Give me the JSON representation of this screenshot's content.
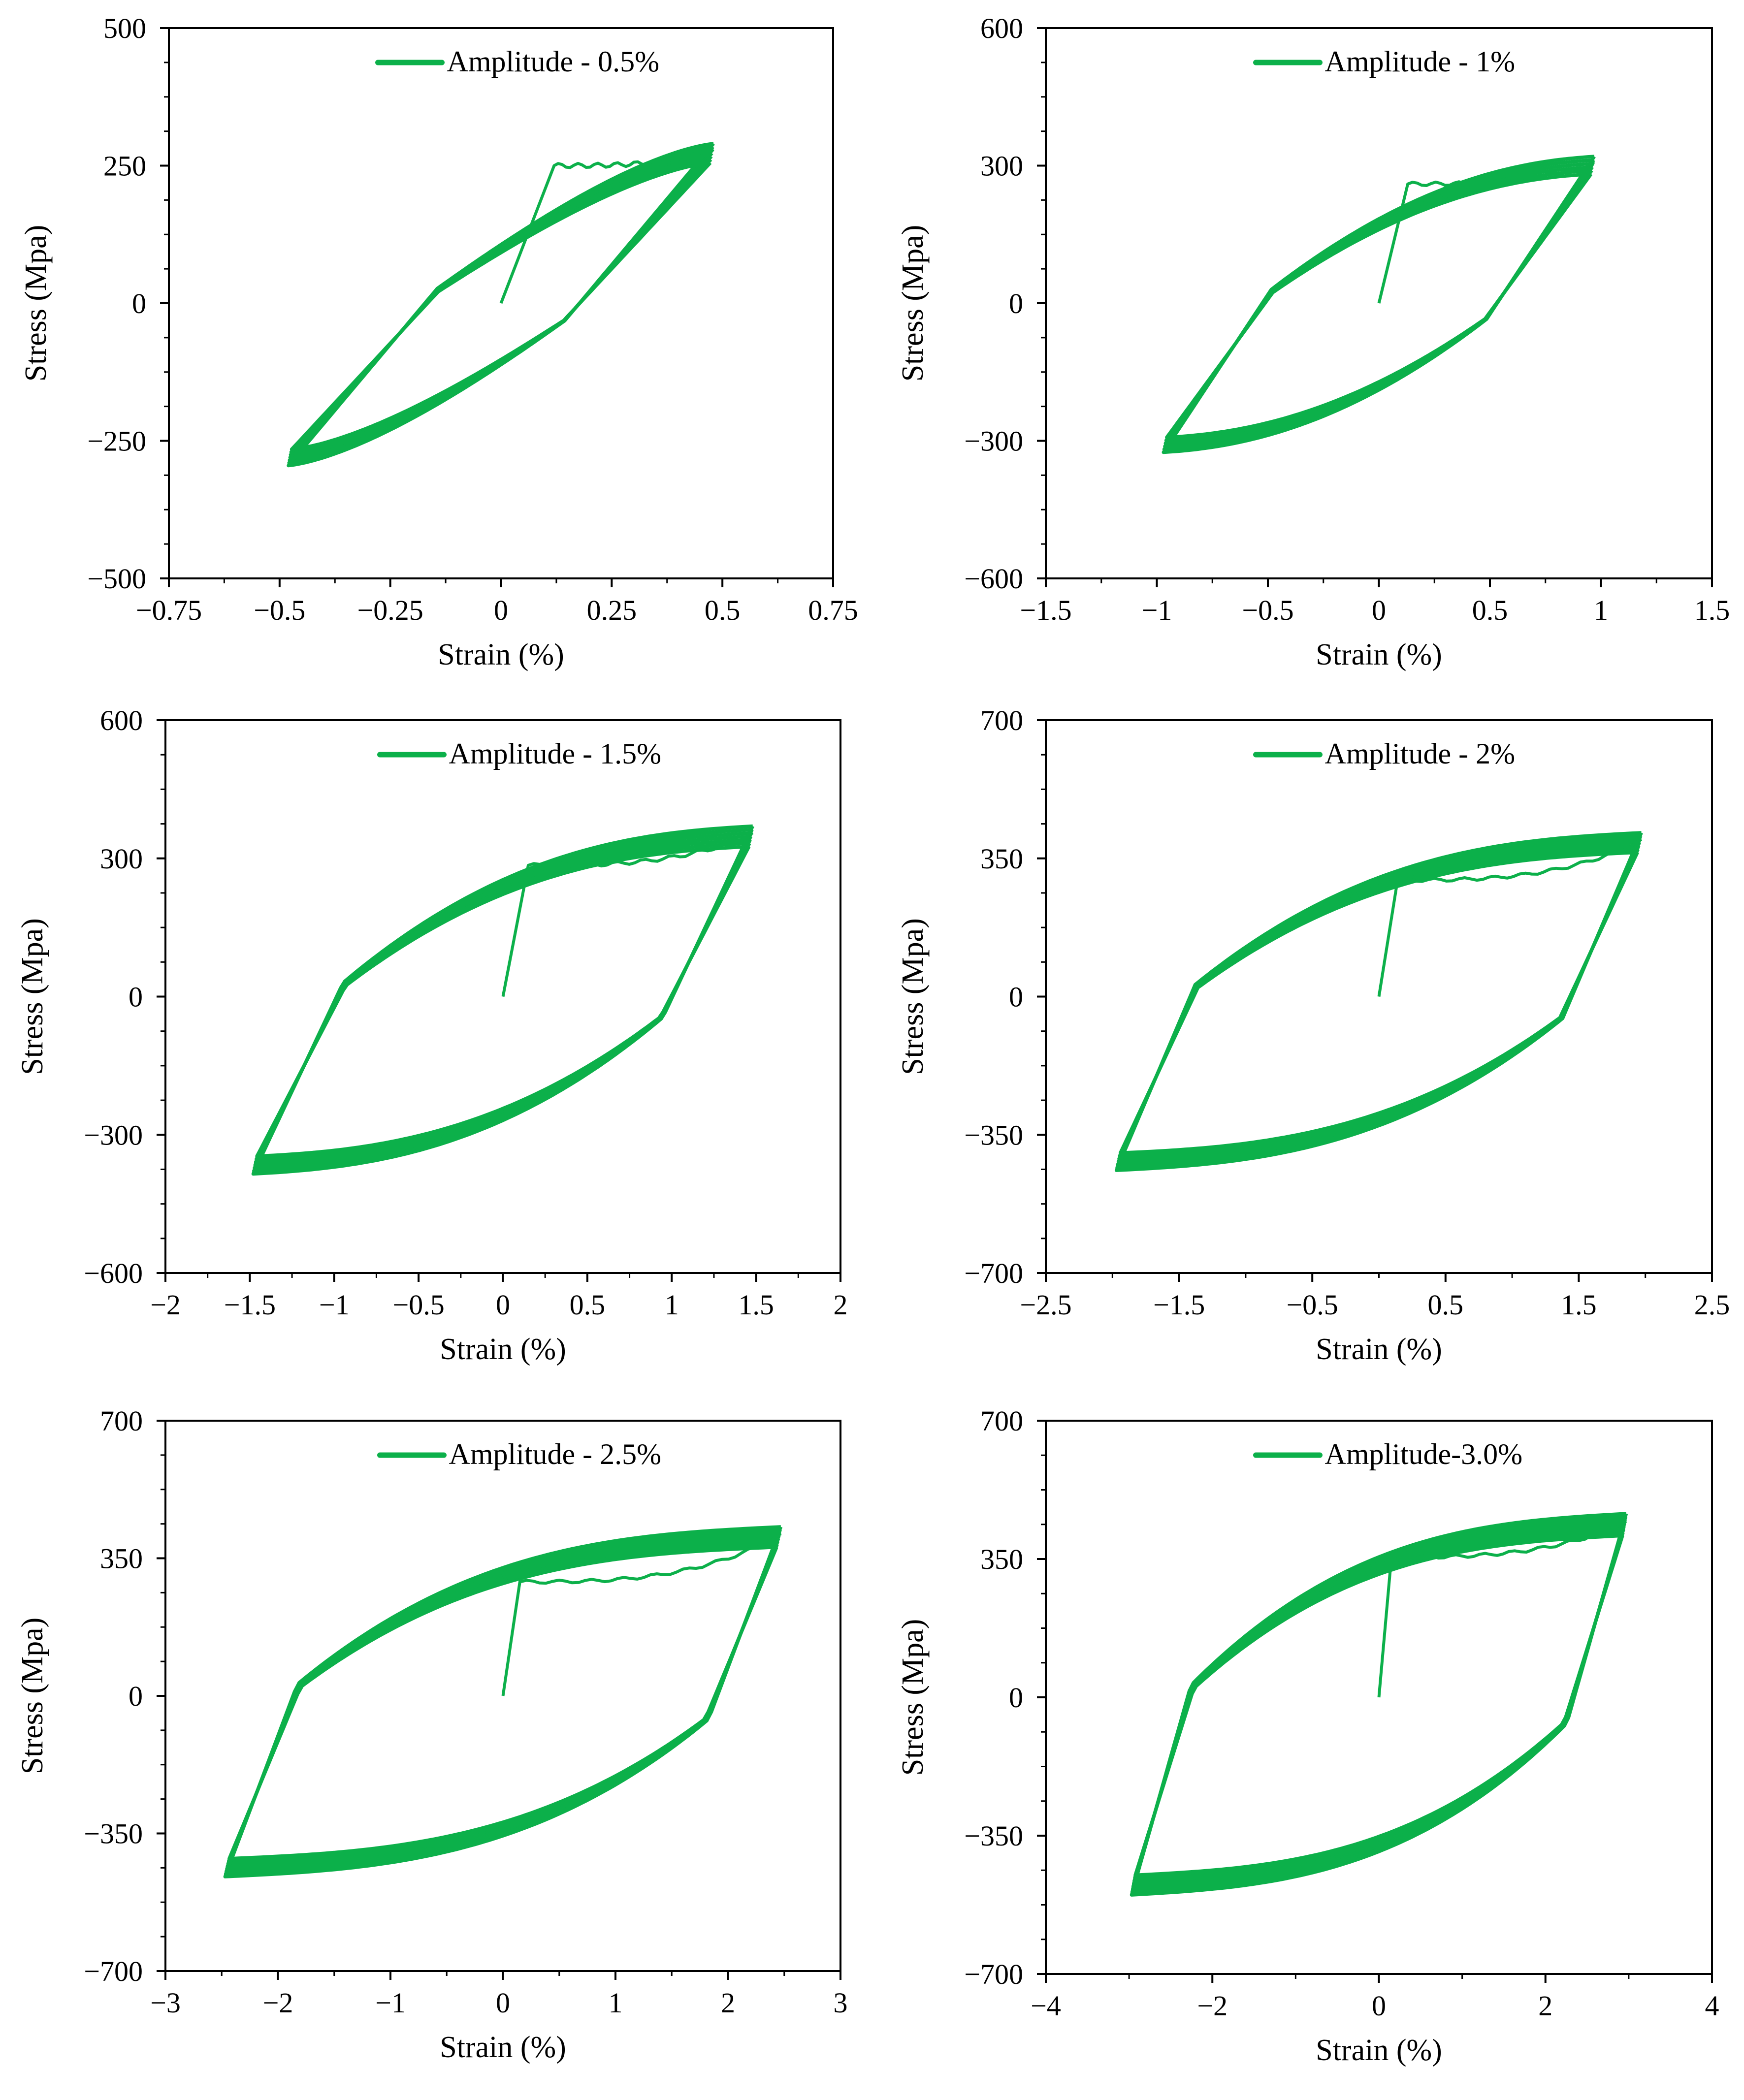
{
  "colors": {
    "series": "#0cb04a",
    "axis": "#000000",
    "background": "#ffffff"
  },
  "chart_data": [
    {
      "type": "line",
      "legend": "Amplitude - 0.5%",
      "legend_position": "top-center",
      "xlabel": "Strain (%)",
      "ylabel": "Stress (Mpa)",
      "xlim": [
        -0.75,
        0.75
      ],
      "ylim": [
        -500,
        500
      ],
      "xticks": [
        -0.75,
        -0.5,
        -0.25,
        0,
        0.25,
        0.5,
        0.75
      ],
      "xtick_labels": [
        "−0.75",
        "−0.5",
        "−0.25",
        "0",
        "0.25",
        "0.5",
        "0.75"
      ],
      "yticks": [
        -500,
        -250,
        0,
        250,
        500
      ],
      "ytick_labels": [
        "−500",
        "−250",
        "0",
        "250",
        "500"
      ],
      "grid": false,
      "amplitude": 0.48,
      "peak_stress": 290,
      "min_stress": -295,
      "initial": {
        "yield_strain": 0.12,
        "yield_stress": 250
      },
      "hysteresis": {
        "yield_frac": 0.35,
        "exponent": 1.6
      },
      "cycles": 7
    },
    {
      "type": "line",
      "legend": "Amplitude - 1%",
      "legend_position": "top-center",
      "xlabel": "Strain (%)",
      "ylabel": "Stress (Mpa)",
      "xlim": [
        -1.5,
        1.5
      ],
      "ylim": [
        -600,
        600
      ],
      "xticks": [
        -1.5,
        -1,
        -0.5,
        0,
        0.5,
        1,
        1.5
      ],
      "xtick_labels": [
        "−1.5",
        "−1",
        "−0.5",
        "0",
        "0.5",
        "1",
        "1.5"
      ],
      "yticks": [
        -600,
        -300,
        0,
        300,
        600
      ],
      "ytick_labels": [
        "−600",
        "−300",
        "0",
        "300",
        "600"
      ],
      "grid": false,
      "amplitude": 0.97,
      "peak_stress": 320,
      "min_stress": -325,
      "initial": {
        "yield_strain": 0.13,
        "yield_stress": 260
      },
      "hysteresis": {
        "yield_frac": 0.25,
        "exponent": 2.2
      },
      "cycles": 6
    },
    {
      "type": "line",
      "legend": "Amplitude - 1.5%",
      "legend_position": "top-center",
      "xlabel": "Strain (%)",
      "ylabel": "Stress (Mpa)",
      "xlim": [
        -2,
        2
      ],
      "ylim": [
        -600,
        600
      ],
      "xticks": [
        -2,
        -1.5,
        -1,
        -0.5,
        0,
        0.5,
        1,
        1.5,
        2
      ],
      "xtick_labels": [
        "−2",
        "−1.5",
        "−1",
        "−0.5",
        "0",
        "0.5",
        "1",
        "1.5",
        "2"
      ],
      "yticks": [
        -600,
        -300,
        0,
        300,
        600
      ],
      "ytick_labels": [
        "−600",
        "−300",
        "0",
        "300",
        "600"
      ],
      "grid": false,
      "amplitude": 1.48,
      "peak_stress": 370,
      "min_stress": -385,
      "initial": {
        "yield_strain": 0.15,
        "yield_stress": 285
      },
      "hysteresis": {
        "yield_frac": 0.18,
        "exponent": 2.6
      },
      "cycles": 7
    },
    {
      "type": "line",
      "legend": "Amplitude - 2%",
      "legend_position": "top-center",
      "xlabel": "Strain (%)",
      "ylabel": "Stress (Mpa)",
      "xlim": [
        -2.5,
        2.5
      ],
      "ylim": [
        -700,
        700
      ],
      "xticks": [
        -2.5,
        -1.5,
        -0.5,
        0.5,
        1.5,
        2.5
      ],
      "xtick_labels": [
        "−2.5",
        "−1.5",
        "−0.5",
        "0.5",
        "1.5",
        "2.5"
      ],
      "yticks": [
        -700,
        -350,
        0,
        350,
        700
      ],
      "ytick_labels": [
        "−700",
        "−350",
        "0",
        "350",
        "700"
      ],
      "grid": false,
      "amplitude": 1.97,
      "peak_stress": 415,
      "min_stress": -440,
      "initial": {
        "yield_strain": 0.14,
        "yield_stress": 295
      },
      "hysteresis": {
        "yield_frac": 0.15,
        "exponent": 2.8
      },
      "cycles": 7
    },
    {
      "type": "line",
      "legend": "Amplitude - 2.5%",
      "legend_position": "top-center",
      "xlabel": "Strain (%)",
      "ylabel": "Stress (Mpa)",
      "xlim": [
        -3,
        3
      ],
      "ylim": [
        -700,
        700
      ],
      "xticks": [
        -3,
        -2,
        -1,
        0,
        1,
        2,
        3
      ],
      "xtick_labels": [
        "−3",
        "−2",
        "−1",
        "0",
        "1",
        "2",
        "3"
      ],
      "yticks": [
        -700,
        -350,
        0,
        350,
        700
      ],
      "ytick_labels": [
        "−700",
        "−350",
        "0",
        "350",
        "700"
      ],
      "grid": false,
      "amplitude": 2.47,
      "peak_stress": 430,
      "min_stress": -460,
      "initial": {
        "yield_strain": 0.15,
        "yield_stress": 290
      },
      "hysteresis": {
        "yield_frac": 0.13,
        "exponent": 3.0
      },
      "cycles": 8
    },
    {
      "type": "line",
      "legend": "Amplitude-3.0%",
      "legend_position": "top-center",
      "xlabel": "Strain (%)",
      "ylabel": "Stress (Mpa)",
      "xlim": [
        -4,
        4
      ],
      "ylim": [
        -700,
        700
      ],
      "xticks": [
        -4,
        -2,
        0,
        2,
        4
      ],
      "xtick_labels": [
        "−4",
        "−2",
        "0",
        "2",
        "4"
      ],
      "yticks": [
        -700,
        -350,
        0,
        350,
        700
      ],
      "ytick_labels": [
        "−700",
        "−350",
        "0",
        "350",
        "700"
      ],
      "grid": false,
      "amplitude": 2.97,
      "peak_stress": 465,
      "min_stress": -500,
      "initial": {
        "yield_strain": 0.15,
        "yield_stress": 355
      },
      "hysteresis": {
        "yield_frac": 0.12,
        "exponent": 3.0
      },
      "cycles": 8
    }
  ]
}
